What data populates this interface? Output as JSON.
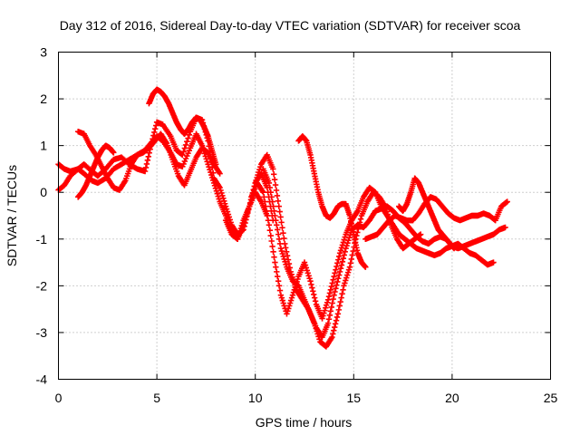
{
  "chart_data": {
    "type": "scatter",
    "title": "Day 312 of 2016, Sidereal Day-to-day VTEC variation (SDTVAR) for receiver scoa",
    "xlabel": "GPS time / hours",
    "ylabel": "SDTVAR / TECUs",
    "xlim": [
      0,
      25
    ],
    "ylim": [
      -4,
      3
    ],
    "xticks": [
      "0",
      "5",
      "10",
      "15",
      "20",
      "25"
    ],
    "yticks": [
      "-4",
      "-3",
      "-2",
      "-1",
      "0",
      "1",
      "2",
      "3"
    ],
    "grid": true,
    "marker": "+",
    "color": "#ff0000",
    "series": [
      {
        "x": [
          0.0,
          0.3,
          0.6,
          1.0,
          1.3,
          1.7,
          2.0,
          2.4,
          2.8,
          3.2,
          3.6,
          4.0,
          4.4,
          4.7,
          5.0,
          5.3,
          5.7,
          6.0,
          6.3,
          6.7,
          7.0,
          7.3,
          7.6,
          7.9,
          8.2,
          8.5,
          8.8,
          9.1,
          9.4,
          9.7,
          10.0,
          10.3,
          10.6,
          10.9
        ],
        "y": [
          0.6,
          0.5,
          0.45,
          0.5,
          0.6,
          0.45,
          0.35,
          0.5,
          0.7,
          0.75,
          0.6,
          0.5,
          0.45,
          1.0,
          1.5,
          1.45,
          1.2,
          0.9,
          0.8,
          1.3,
          1.6,
          1.55,
          1.1,
          0.3,
          0.1,
          -0.3,
          -0.7,
          -0.9,
          -0.8,
          -0.3,
          0.2,
          0.4,
          0.1,
          -0.6
        ]
      },
      {
        "x": [
          0.0,
          0.3,
          0.6,
          1.0,
          1.3,
          1.7,
          2.0,
          2.4,
          2.8,
          3.2,
          3.6,
          4.0,
          4.4,
          4.7,
          5.0,
          5.3,
          5.7,
          6.0,
          6.3,
          6.7,
          7.0,
          7.3,
          7.6,
          7.9,
          8.2,
          8.5,
          8.8,
          9.1,
          9.4,
          9.7,
          10.0,
          10.3,
          10.6
        ],
        "y": [
          0.05,
          0.15,
          0.35,
          0.5,
          0.4,
          0.25,
          0.2,
          0.3,
          0.5,
          0.6,
          0.7,
          0.8,
          0.9,
          1.05,
          1.2,
          1.1,
          0.85,
          0.6,
          0.55,
          0.95,
          1.25,
          1.0,
          0.6,
          0.2,
          -0.2,
          -0.5,
          -0.85,
          -1.0,
          -0.7,
          -0.3,
          0.0,
          -0.2,
          -0.5
        ]
      },
      {
        "x": [
          1.0,
          1.3,
          1.6,
          1.9,
          2.2,
          2.5,
          2.8,
          3.1,
          3.4,
          3.7,
          4.0,
          4.3,
          4.6,
          4.9,
          5.2,
          5.5,
          5.8,
          6.1,
          6.4,
          6.7,
          7.0,
          7.3,
          7.6,
          7.9,
          8.2
        ],
        "y": [
          1.3,
          1.25,
          1.0,
          0.8,
          0.55,
          0.3,
          0.1,
          0.05,
          0.25,
          0.6,
          0.8,
          0.85,
          0.95,
          1.1,
          1.25,
          1.05,
          0.7,
          0.35,
          0.15,
          0.45,
          0.75,
          0.95,
          0.85,
          0.6,
          0.4
        ]
      },
      {
        "x": [
          4.6,
          4.8,
          5.0,
          5.2,
          5.4,
          5.6,
          5.8,
          6.0,
          6.2,
          6.4,
          6.6,
          6.8,
          7.0,
          7.2,
          7.4,
          7.6,
          7.8,
          8.0
        ],
        "y": [
          1.9,
          2.1,
          2.2,
          2.15,
          2.05,
          1.9,
          1.7,
          1.5,
          1.35,
          1.25,
          1.35,
          1.5,
          1.6,
          1.55,
          1.4,
          1.2,
          0.9,
          0.6
        ]
      },
      {
        "x": [
          1.0,
          1.2,
          1.4,
          1.6,
          1.8,
          2.0,
          2.2,
          2.4,
          2.6,
          2.8
        ],
        "y": [
          -0.1,
          0.0,
          0.15,
          0.35,
          0.55,
          0.75,
          0.9,
          1.0,
          0.95,
          0.85
        ]
      },
      {
        "x": [
          8.5,
          8.8,
          9.1,
          9.4,
          9.7,
          10.0,
          10.3,
          10.6,
          10.9,
          11.2,
          11.5,
          11.8,
          12.1,
          12.4,
          12.7,
          13.0,
          13.3,
          13.6,
          13.9,
          14.2,
          14.5,
          14.8,
          15.1,
          15.4,
          15.7,
          16.0,
          16.3,
          16.6,
          16.9,
          17.2,
          17.5,
          17.8,
          18.1,
          18.4
        ],
        "y": [
          -0.6,
          -0.9,
          -1.0,
          -0.6,
          -0.3,
          0.2,
          0.6,
          0.8,
          0.5,
          -0.3,
          -1.1,
          -1.7,
          -2.1,
          -2.3,
          -2.5,
          -2.8,
          -3.2,
          -3.3,
          -3.1,
          -2.6,
          -2.0,
          -1.6,
          -1.0,
          -0.5,
          -0.2,
          0.0,
          -0.1,
          -0.3,
          -0.7,
          -1.0,
          -1.2,
          -1.1,
          -1.0,
          -0.9
        ]
      },
      {
        "x": [
          9.8,
          10.1,
          10.4,
          10.7,
          11.0,
          11.3,
          11.6,
          11.9,
          12.2,
          12.5,
          12.8,
          13.1,
          13.4,
          13.7,
          14.0,
          14.3,
          14.6,
          14.9,
          15.2,
          15.5,
          15.8,
          16.1,
          16.4,
          16.7,
          17.0,
          17.3,
          17.6,
          17.9,
          18.2,
          18.5,
          18.8,
          19.1,
          19.4,
          19.7,
          20.0,
          20.3,
          20.6,
          20.9,
          21.2,
          21.5,
          21.8,
          22.1
        ],
        "y": [
          -0.1,
          0.2,
          0.0,
          -0.7,
          -1.5,
          -2.2,
          -2.6,
          -2.2,
          -1.8,
          -1.5,
          -1.9,
          -2.4,
          -2.7,
          -2.3,
          -1.8,
          -1.3,
          -0.9,
          -0.6,
          -0.4,
          -0.1,
          0.1,
          0.0,
          -0.3,
          -0.5,
          -0.7,
          -0.9,
          -1.0,
          -1.1,
          -1.2,
          -1.25,
          -1.3,
          -1.35,
          -1.3,
          -1.2,
          -1.15,
          -1.1,
          -1.2,
          -1.3,
          -1.35,
          -1.45,
          -1.55,
          -1.5
        ]
      },
      {
        "x": [
          10.4,
          10.7,
          11.0,
          11.3,
          11.6,
          11.9,
          12.2,
          12.5,
          12.8,
          13.1,
          13.4,
          13.7,
          14.0,
          14.3,
          14.6,
          14.9,
          15.2,
          15.5,
          15.8,
          16.1,
          16.4,
          16.7,
          17.0,
          17.3,
          17.6,
          17.9,
          18.2,
          18.5,
          18.8,
          19.1,
          19.4,
          19.7,
          20.0,
          20.3,
          20.6,
          20.9,
          21.2,
          21.5,
          21.8,
          22.1,
          22.4,
          22.7
        ],
        "y": [
          0.5,
          0.2,
          -0.5,
          -1.2,
          -1.6,
          -1.9,
          -2.0,
          -2.3,
          -2.6,
          -2.9,
          -3.1,
          -2.8,
          -2.2,
          -1.7,
          -1.2,
          -0.8,
          -0.7,
          -0.75,
          -0.6,
          -0.4,
          -0.35,
          -0.3,
          -0.4,
          -0.55,
          -0.65,
          -0.8,
          -0.95,
          -1.05,
          -1.1,
          -1.0,
          -0.95,
          -1.0,
          -1.15,
          -1.2,
          -1.15,
          -1.1,
          -1.05,
          -1.0,
          -0.95,
          -0.9,
          -0.8,
          -0.75
        ]
      },
      {
        "x": [
          12.2,
          12.4,
          12.6,
          12.8,
          13.0,
          13.2,
          13.4,
          13.6,
          13.8,
          14.0,
          14.2,
          14.4,
          14.6,
          14.8,
          15.0,
          15.2,
          15.4,
          15.6
        ],
        "y": [
          1.1,
          1.2,
          1.1,
          0.8,
          0.4,
          0.0,
          -0.3,
          -0.5,
          -0.55,
          -0.45,
          -0.3,
          -0.25,
          -0.25,
          -0.5,
          -0.9,
          -1.3,
          -1.5,
          -1.6
        ]
      },
      {
        "x": [
          15.6,
          15.9,
          16.2,
          16.5,
          16.8,
          17.1,
          17.4,
          17.7,
          18.0,
          18.3,
          18.6,
          18.9,
          19.2,
          19.5,
          19.8,
          20.1,
          20.4,
          20.7,
          21.0,
          21.3,
          21.6,
          21.9,
          22.2,
          22.5,
          22.8
        ],
        "y": [
          -1.0,
          -0.95,
          -0.9,
          -0.75,
          -0.6,
          -0.5,
          -0.55,
          -0.6,
          -0.6,
          -0.45,
          -0.25,
          -0.1,
          -0.15,
          -0.3,
          -0.45,
          -0.55,
          -0.6,
          -0.55,
          -0.5,
          -0.5,
          -0.45,
          -0.5,
          -0.6,
          -0.3,
          -0.2
        ]
      },
      {
        "x": [
          17.3,
          17.5,
          17.7,
          17.9,
          18.1,
          18.3,
          18.5,
          18.7,
          18.9,
          19.1,
          19.3,
          19.5,
          19.7,
          19.9,
          20.1
        ],
        "y": [
          -0.3,
          -0.4,
          -0.25,
          0.0,
          0.3,
          0.2,
          0.0,
          -0.2,
          -0.4,
          -0.6,
          -0.8,
          -0.9,
          -1.0,
          -1.1,
          -1.2
        ]
      }
    ]
  }
}
